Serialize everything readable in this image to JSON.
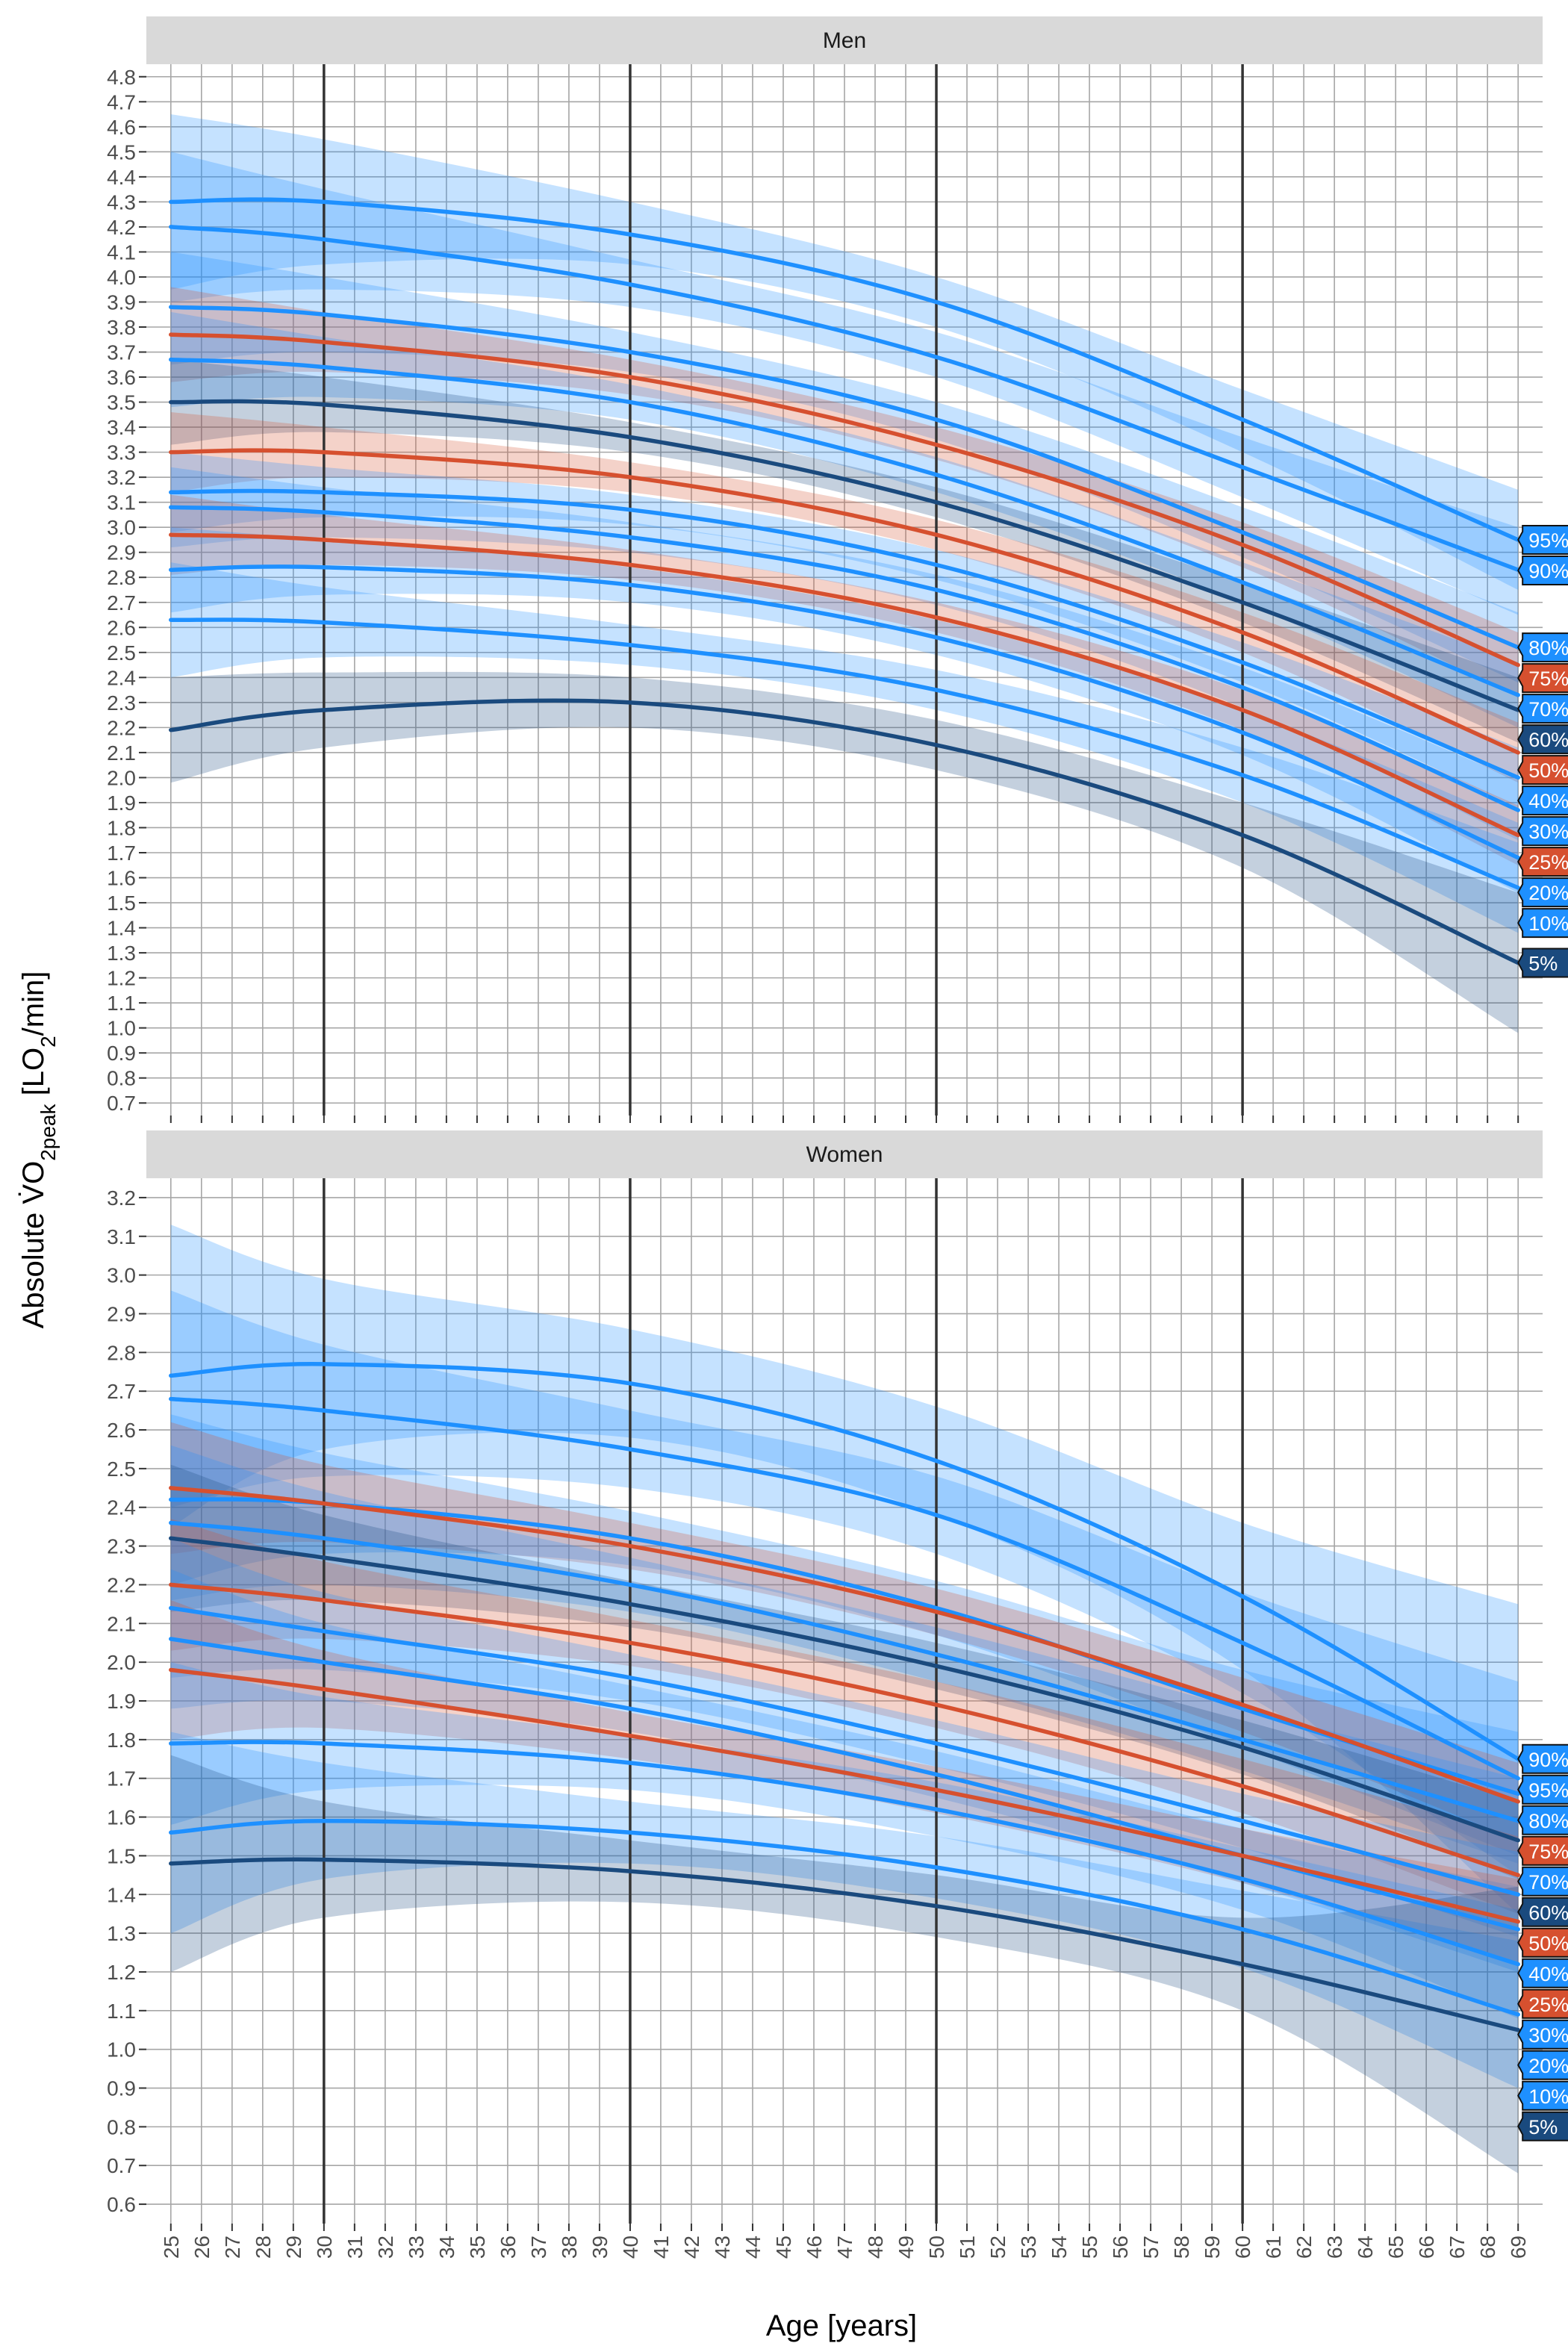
{
  "figure": {
    "xlabel": "Age [years]",
    "ylabel": {
      "prefix": "Absolute ",
      "v": "V",
      "o": "O",
      "sub1": "2peak",
      "mid": " [LO",
      "sub2": "2",
      "suffix": "/min]"
    }
  },
  "colors": {
    "blue": "#1E90FF",
    "dark": "#1A4A7E",
    "red": "#D6502F",
    "strip": "#D9D9D9",
    "grid": "#A6A6A6",
    "vline": "#333333"
  },
  "chart_data": [
    {
      "type": "line",
      "panel": "Men",
      "title": "Men",
      "xlabel": "Age [years]",
      "ylabel": "Absolute VO2peak [LO2/min]",
      "xlim": [
        25,
        69
      ],
      "ylim": [
        0.7,
        4.8
      ],
      "x_ticks": [
        25,
        26,
        27,
        28,
        29,
        30,
        31,
        32,
        33,
        34,
        35,
        36,
        37,
        38,
        39,
        40,
        41,
        42,
        43,
        44,
        45,
        46,
        47,
        48,
        49,
        50,
        51,
        52,
        53,
        54,
        55,
        56,
        57,
        58,
        59,
        60,
        61,
        62,
        63,
        64,
        65,
        66,
        67,
        68,
        69
      ],
      "y_ticks": [
        0.7,
        0.8,
        0.9,
        1.0,
        1.1,
        1.2,
        1.3,
        1.4,
        1.5,
        1.6,
        1.7,
        1.8,
        1.9,
        2.0,
        2.1,
        2.2,
        2.3,
        2.4,
        2.5,
        2.6,
        2.7,
        2.8,
        2.9,
        3.0,
        3.1,
        3.2,
        3.3,
        3.4,
        3.5,
        3.6,
        3.7,
        3.8,
        3.9,
        4.0,
        4.1,
        4.2,
        4.3,
        4.4,
        4.5,
        4.6,
        4.7,
        4.8
      ],
      "vlines": [
        30,
        40,
        50,
        60
      ],
      "x": [
        25,
        30,
        40,
        50,
        60,
        69
      ],
      "series": [
        {
          "name": "95%",
          "color": "blue",
          "values": [
            4.3,
            4.3,
            4.17,
            3.9,
            3.43,
            2.95
          ],
          "lower": [
            3.95,
            4.05,
            4.05,
            3.8,
            3.3,
            2.75
          ],
          "upper": [
            4.65,
            4.55,
            4.3,
            4.0,
            3.55,
            3.15
          ]
        },
        {
          "name": "90%",
          "color": "blue",
          "values": [
            4.2,
            4.15,
            3.97,
            3.68,
            3.24,
            2.83
          ],
          "lower": [
            3.9,
            3.95,
            3.88,
            3.6,
            3.12,
            2.65
          ],
          "upper": [
            4.5,
            4.35,
            4.07,
            3.78,
            3.36,
            3.0
          ]
        },
        {
          "name": "80%",
          "color": "blue",
          "values": [
            3.88,
            3.85,
            3.7,
            3.43,
            2.98,
            2.52
          ],
          "lower": [
            3.65,
            3.7,
            3.62,
            3.35,
            2.88,
            2.38
          ],
          "upper": [
            4.1,
            4.0,
            3.78,
            3.5,
            3.08,
            2.66
          ]
        },
        {
          "name": "75%",
          "color": "red",
          "values": [
            3.77,
            3.74,
            3.6,
            3.33,
            2.93,
            2.45
          ],
          "lower": [
            3.58,
            3.62,
            3.53,
            3.27,
            2.84,
            2.32
          ],
          "upper": [
            3.96,
            3.86,
            3.67,
            3.4,
            3.02,
            2.58
          ]
        },
        {
          "name": "70%",
          "color": "blue",
          "values": [
            3.67,
            3.64,
            3.5,
            3.21,
            2.78,
            2.33
          ],
          "lower": [
            3.48,
            3.52,
            3.43,
            3.14,
            2.7,
            2.2
          ],
          "upper": [
            3.86,
            3.76,
            3.57,
            3.28,
            2.86,
            2.46
          ]
        },
        {
          "name": "60%",
          "color": "dark",
          "values": [
            3.5,
            3.49,
            3.36,
            3.1,
            2.7,
            2.27
          ],
          "lower": [
            3.33,
            3.38,
            3.3,
            3.04,
            2.62,
            2.14
          ],
          "upper": [
            3.67,
            3.6,
            3.42,
            3.16,
            2.78,
            2.4
          ]
        },
        {
          "name": "50%",
          "color": "red",
          "values": [
            3.3,
            3.3,
            3.2,
            2.97,
            2.58,
            2.1
          ],
          "lower": [
            3.14,
            3.2,
            3.14,
            2.91,
            2.5,
            1.98
          ],
          "upper": [
            3.46,
            3.4,
            3.26,
            3.03,
            2.66,
            2.22
          ]
        },
        {
          "name": "40%",
          "color": "blue",
          "values": [
            3.14,
            3.14,
            3.07,
            2.85,
            2.46,
            2.0
          ],
          "lower": [
            2.98,
            3.04,
            3.01,
            2.79,
            2.38,
            1.88
          ],
          "upper": [
            3.3,
            3.24,
            3.13,
            2.91,
            2.54,
            2.12
          ]
        },
        {
          "name": "30%",
          "color": "blue",
          "values": [
            3.08,
            3.06,
            2.96,
            2.75,
            2.36,
            1.87
          ],
          "lower": [
            2.92,
            2.96,
            2.9,
            2.69,
            2.28,
            1.75
          ],
          "upper": [
            3.24,
            3.16,
            3.02,
            2.81,
            2.44,
            1.99
          ]
        },
        {
          "name": "25%",
          "color": "red",
          "values": [
            2.97,
            2.95,
            2.85,
            2.64,
            2.27,
            1.77
          ],
          "lower": [
            2.81,
            2.85,
            2.79,
            2.58,
            2.19,
            1.65
          ],
          "upper": [
            3.13,
            3.05,
            2.91,
            2.7,
            2.35,
            1.89
          ]
        },
        {
          "name": "20%",
          "color": "blue",
          "values": [
            2.83,
            2.84,
            2.77,
            2.56,
            2.18,
            1.68
          ],
          "lower": [
            2.66,
            2.73,
            2.7,
            2.49,
            2.09,
            1.54
          ],
          "upper": [
            3.0,
            2.95,
            2.84,
            2.63,
            2.27,
            1.82
          ]
        },
        {
          "name": "10%",
          "color": "blue",
          "values": [
            2.63,
            2.62,
            2.53,
            2.35,
            2.01,
            1.56
          ],
          "lower": [
            2.4,
            2.48,
            2.45,
            2.27,
            1.9,
            1.38
          ],
          "upper": [
            2.86,
            2.76,
            2.61,
            2.43,
            2.12,
            1.74
          ]
        },
        {
          "name": "5%",
          "color": "dark",
          "values": [
            2.19,
            2.27,
            2.3,
            2.13,
            1.77,
            1.26
          ],
          "lower": [
            1.98,
            2.12,
            2.2,
            2.03,
            1.64,
            0.98
          ],
          "upper": [
            2.4,
            2.42,
            2.4,
            2.23,
            1.9,
            1.54
          ]
        }
      ]
    },
    {
      "type": "line",
      "panel": "Women",
      "title": "Women",
      "xlabel": "Age [years]",
      "ylabel": "Absolute VO2peak [LO2/min]",
      "xlim": [
        25,
        69
      ],
      "ylim": [
        0.6,
        3.2
      ],
      "x_ticks": [
        25,
        26,
        27,
        28,
        29,
        30,
        31,
        32,
        33,
        34,
        35,
        36,
        37,
        38,
        39,
        40,
        41,
        42,
        43,
        44,
        45,
        46,
        47,
        48,
        49,
        50,
        51,
        52,
        53,
        54,
        55,
        56,
        57,
        58,
        59,
        60,
        61,
        62,
        63,
        64,
        65,
        66,
        67,
        68,
        69
      ],
      "y_ticks": [
        0.6,
        0.7,
        0.8,
        0.9,
        1.0,
        1.1,
        1.2,
        1.3,
        1.4,
        1.5,
        1.6,
        1.7,
        1.8,
        1.9,
        2.0,
        2.1,
        2.2,
        2.3,
        2.4,
        2.5,
        2.6,
        2.7,
        2.8,
        2.9,
        3.0,
        3.1,
        3.2
      ],
      "vlines": [
        30,
        40,
        50,
        60
      ],
      "x": [
        25,
        30,
        40,
        50,
        60,
        69
      ],
      "series": [
        {
          "name": "90%",
          "color": "blue",
          "values": [
            2.74,
            2.77,
            2.72,
            2.52,
            2.17,
            1.75
          ],
          "lower": [
            2.35,
            2.55,
            2.58,
            2.38,
            1.98,
            1.35
          ],
          "upper": [
            3.13,
            2.99,
            2.86,
            2.66,
            2.36,
            2.15
          ]
        },
        {
          "name": "95%",
          "color": "blue",
          "values": [
            2.68,
            2.65,
            2.55,
            2.38,
            2.05,
            1.7
          ],
          "lower": [
            2.4,
            2.48,
            2.45,
            2.28,
            1.92,
            1.45
          ],
          "upper": [
            2.96,
            2.82,
            2.65,
            2.48,
            2.18,
            1.95
          ]
        },
        {
          "name": "80%",
          "color": "blue",
          "values": [
            2.42,
            2.41,
            2.32,
            2.14,
            1.88,
            1.66
          ],
          "lower": [
            2.2,
            2.28,
            2.25,
            2.07,
            1.78,
            1.5
          ],
          "upper": [
            2.64,
            2.54,
            2.39,
            2.21,
            1.98,
            1.82
          ]
        },
        {
          "name": "75%",
          "color": "red",
          "values": [
            2.45,
            2.41,
            2.3,
            2.13,
            1.89,
            1.64
          ],
          "lower": [
            2.28,
            2.31,
            2.24,
            2.07,
            1.82,
            1.54
          ],
          "upper": [
            2.62,
            2.51,
            2.36,
            2.19,
            1.96,
            1.74
          ]
        },
        {
          "name": "70%",
          "color": "blue",
          "values": [
            2.36,
            2.32,
            2.2,
            2.02,
            1.8,
            1.59
          ],
          "lower": [
            2.16,
            2.2,
            2.13,
            1.95,
            1.72,
            1.48
          ],
          "upper": [
            2.56,
            2.44,
            2.27,
            2.09,
            1.88,
            1.7
          ]
        },
        {
          "name": "60%",
          "color": "dark",
          "values": [
            2.32,
            2.27,
            2.15,
            1.99,
            1.78,
            1.54
          ],
          "lower": [
            2.13,
            2.16,
            2.09,
            1.93,
            1.71,
            1.44
          ],
          "upper": [
            2.51,
            2.38,
            2.21,
            2.05,
            1.85,
            1.64
          ]
        },
        {
          "name": "50%",
          "color": "red",
          "values": [
            2.2,
            2.16,
            2.05,
            1.89,
            1.68,
            1.45
          ],
          "lower": [
            2.03,
            2.06,
            1.99,
            1.83,
            1.61,
            1.35
          ],
          "upper": [
            2.37,
            2.26,
            2.11,
            1.95,
            1.75,
            1.55
          ]
        },
        {
          "name": "40%",
          "color": "blue",
          "values": [
            2.14,
            2.08,
            1.96,
            1.79,
            1.59,
            1.4
          ],
          "lower": [
            1.96,
            1.98,
            1.9,
            1.73,
            1.52,
            1.29
          ],
          "upper": [
            2.32,
            2.18,
            2.02,
            1.85,
            1.66,
            1.51
          ]
        },
        {
          "name": "30%",
          "color": "blue",
          "values": [
            2.06,
            2.0,
            1.88,
            1.71,
            1.5,
            1.31
          ],
          "lower": [
            1.88,
            1.9,
            1.82,
            1.65,
            1.43,
            1.2
          ],
          "upper": [
            2.24,
            2.1,
            1.94,
            1.77,
            1.57,
            1.42
          ]
        },
        {
          "name": "25%",
          "color": "red",
          "values": [
            1.98,
            1.93,
            1.81,
            1.67,
            1.5,
            1.33
          ],
          "lower": [
            1.8,
            1.83,
            1.75,
            1.61,
            1.43,
            1.22
          ],
          "upper": [
            2.16,
            2.03,
            1.87,
            1.73,
            1.57,
            1.44
          ]
        },
        {
          "name": "20%",
          "color": "blue",
          "values": [
            1.79,
            1.79,
            1.74,
            1.62,
            1.44,
            1.22
          ],
          "lower": [
            1.58,
            1.67,
            1.67,
            1.55,
            1.36,
            1.08
          ],
          "upper": [
            2.0,
            1.91,
            1.81,
            1.69,
            1.52,
            1.36
          ]
        },
        {
          "name": "10%",
          "color": "blue",
          "values": [
            1.56,
            1.59,
            1.56,
            1.47,
            1.31,
            1.09
          ],
          "lower": [
            1.3,
            1.44,
            1.48,
            1.39,
            1.21,
            0.9
          ],
          "upper": [
            1.82,
            1.74,
            1.64,
            1.55,
            1.41,
            1.28
          ]
        },
        {
          "name": "5%",
          "color": "dark",
          "values": [
            1.48,
            1.49,
            1.46,
            1.37,
            1.22,
            1.05
          ],
          "lower": [
            1.2,
            1.34,
            1.38,
            1.29,
            1.1,
            0.68
          ],
          "upper": [
            1.76,
            1.64,
            1.54,
            1.45,
            1.34,
            1.42
          ]
        }
      ]
    }
  ]
}
